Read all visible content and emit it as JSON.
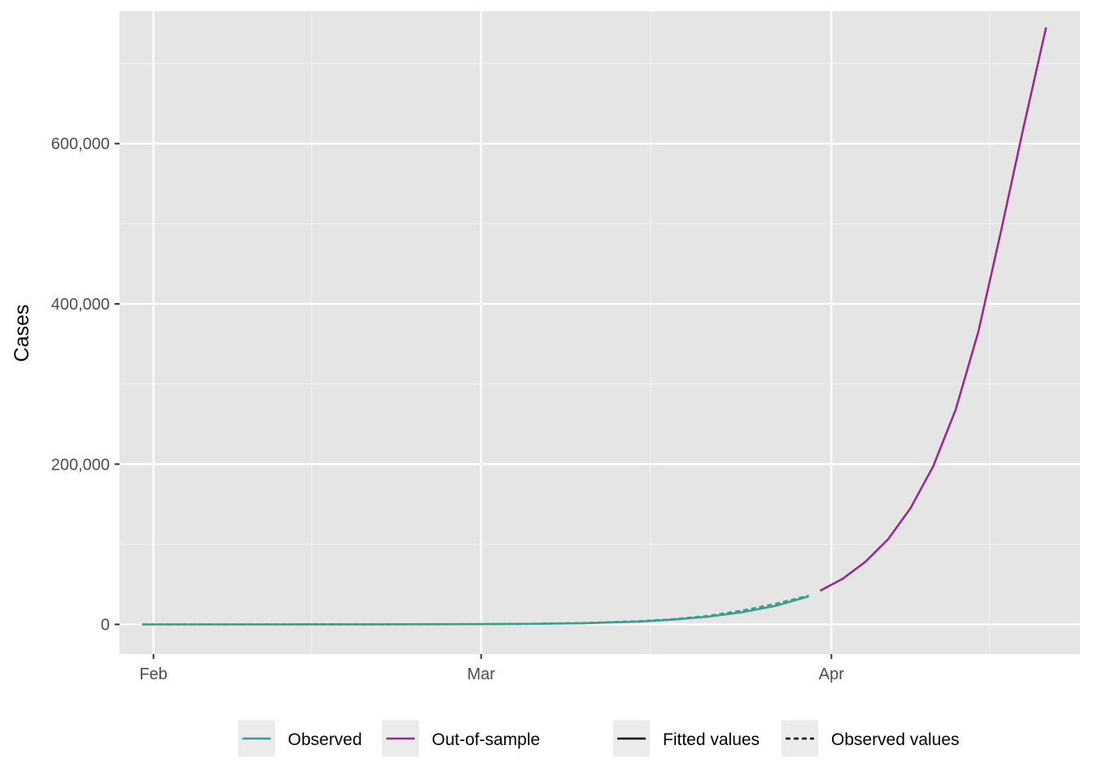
{
  "chart_data": {
    "type": "line",
    "title": "",
    "xlabel": "",
    "ylabel": "Cases",
    "x_axis": {
      "type": "date",
      "range": [
        "2020-01-29",
        "2020-04-23"
      ],
      "ticks": [
        {
          "value": "2020-02-01",
          "label": "Feb"
        },
        {
          "value": "2020-03-01",
          "label": "Mar"
        },
        {
          "value": "2020-04-01",
          "label": "Apr"
        }
      ],
      "minor_ticks": [
        "2020-02-15",
        "2020-03-16",
        "2020-04-15"
      ]
    },
    "y_axis": {
      "range": [
        -37000,
        765000
      ],
      "ticks": [
        {
          "value": 0,
          "label": "0"
        },
        {
          "value": 200000,
          "label": "200,000"
        },
        {
          "value": 400000,
          "label": "400,000"
        },
        {
          "value": 600000,
          "label": "600,000"
        }
      ],
      "minor_ticks": [
        100000,
        300000,
        500000,
        700000
      ]
    },
    "grid": true,
    "legend_position": "bottom",
    "legend": {
      "color_entries": [
        {
          "key": "observed",
          "label": "Observed",
          "color": "#3b9f8a"
        },
        {
          "key": "oos",
          "label": "Out-of-sample",
          "color": "#9a2a8e"
        }
      ],
      "linetype_entries": [
        {
          "key": "fitted",
          "label": "Fitted values",
          "dash": "solid"
        },
        {
          "key": "observed_values",
          "label": "Observed values",
          "dash": "dashed"
        }
      ]
    },
    "series": [
      {
        "key": "fitted-observed",
        "color_group": "observed",
        "linetype": "solid",
        "color": "#3b9f8a",
        "points": [
          [
            "2020-01-31",
            0
          ],
          [
            "2020-02-10",
            5
          ],
          [
            "2020-02-20",
            40
          ],
          [
            "2020-02-29",
            300
          ],
          [
            "2020-03-05",
            650
          ],
          [
            "2020-03-10",
            1500
          ],
          [
            "2020-03-15",
            3500
          ],
          [
            "2020-03-18",
            6000
          ],
          [
            "2020-03-21",
            9500
          ],
          [
            "2020-03-24",
            15000
          ],
          [
            "2020-03-27",
            23000
          ],
          [
            "2020-03-30",
            35000
          ]
        ]
      },
      {
        "key": "observed-values",
        "color_group": "observed",
        "linetype": "dashed",
        "color": "#3b9f8a",
        "points": [
          [
            "2020-01-31",
            0
          ],
          [
            "2020-02-10",
            5
          ],
          [
            "2020-02-20",
            40
          ],
          [
            "2020-02-29",
            300
          ],
          [
            "2020-03-05",
            700
          ],
          [
            "2020-03-10",
            1700
          ],
          [
            "2020-03-15",
            4000
          ],
          [
            "2020-03-18",
            6500
          ],
          [
            "2020-03-21",
            10500
          ],
          [
            "2020-03-24",
            17000
          ],
          [
            "2020-03-27",
            25500
          ],
          [
            "2020-03-30",
            36000
          ]
        ]
      },
      {
        "key": "fitted-oos",
        "color_group": "oos",
        "linetype": "solid",
        "color": "#9a2a8e",
        "points": [
          [
            "2020-03-31",
            42000
          ],
          [
            "2020-04-02",
            57000
          ],
          [
            "2020-04-04",
            78000
          ],
          [
            "2020-04-06",
            106000
          ],
          [
            "2020-04-08",
            145000
          ],
          [
            "2020-04-10",
            197000
          ],
          [
            "2020-04-12",
            268000
          ],
          [
            "2020-04-14",
            365000
          ],
          [
            "2020-04-16",
            490000
          ],
          [
            "2020-04-18",
            620000
          ],
          [
            "2020-04-20",
            745000
          ]
        ]
      }
    ]
  }
}
